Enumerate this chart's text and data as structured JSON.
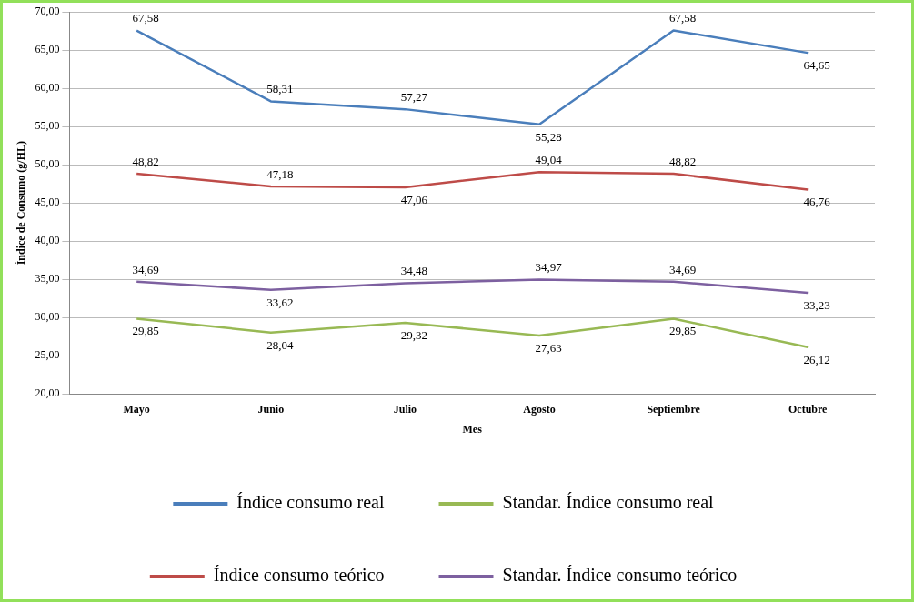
{
  "chart_data": {
    "type": "line",
    "xlabel": "Mes",
    "ylabel": "Índice de Consumo (g/HL)",
    "categories": [
      "Mayo",
      "Junio",
      "Julio",
      "Agosto",
      "Septiembre",
      "Octubre"
    ],
    "ylim": [
      20,
      70
    ],
    "yticks": [
      {
        "value": 20,
        "label": "20,00"
      },
      {
        "value": 25,
        "label": "25,00"
      },
      {
        "value": 30,
        "label": "30,00"
      },
      {
        "value": 35,
        "label": "35,00"
      },
      {
        "value": 40,
        "label": "40,00"
      },
      {
        "value": 45,
        "label": "45,00"
      },
      {
        "value": 50,
        "label": "50,00"
      },
      {
        "value": 55,
        "label": "55,00"
      },
      {
        "value": 60,
        "label": "60,00"
      },
      {
        "value": 65,
        "label": "65,00"
      },
      {
        "value": 70,
        "label": "70,00"
      }
    ],
    "grid": "y",
    "legend": "bottom",
    "marker": "none",
    "line_style": "solid",
    "series": [
      {
        "name": "Índice consumo real",
        "color": "#4a7ebb",
        "values": [
          67.58,
          58.31,
          57.27,
          55.28,
          67.58,
          64.65
        ],
        "value_labels": [
          "67,58",
          "58,31",
          "57,27",
          "55,28",
          "67,58",
          "64,65"
        ]
      },
      {
        "name": "Standar. Índice consumo real",
        "color": "#98b954",
        "values": [
          29.85,
          28.04,
          29.32,
          27.63,
          29.85,
          26.12
        ],
        "value_labels": [
          "29,85",
          "28,04",
          "29,32",
          "27,63",
          "29,85",
          "26,12"
        ]
      },
      {
        "name": "Índice consumo teórico",
        "color": "#be4b48",
        "values": [
          48.82,
          47.18,
          47.06,
          49.04,
          48.82,
          46.76
        ],
        "value_labels": [
          "48,82",
          "47,18",
          "47,06",
          "49,04",
          "48,82",
          "46,76"
        ]
      },
      {
        "name": "Standar. Índice consumo teórico",
        "color": "#7d60a0",
        "values": [
          34.69,
          33.62,
          34.48,
          34.97,
          34.69,
          33.23
        ],
        "value_labels": [
          "34,69",
          "33,62",
          "34,48",
          "34,97",
          "34,69",
          "33,23"
        ]
      }
    ]
  }
}
